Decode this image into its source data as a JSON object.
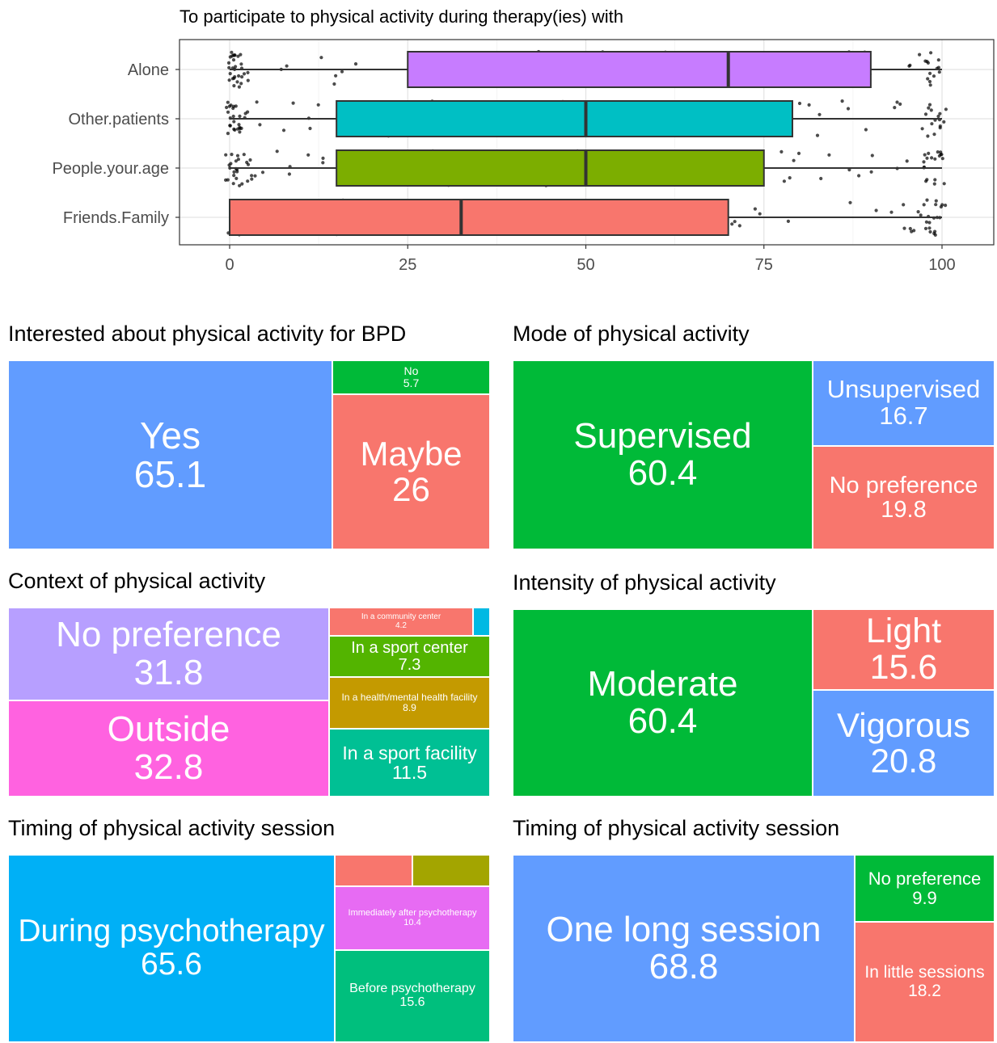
{
  "chart_data": [
    {
      "type": "boxplot",
      "title": "To participate to physical activity during therapy(ies) with",
      "xlabel": "",
      "ylabel": "",
      "xlim": [
        -2,
        106
      ],
      "x_ticks": [
        0,
        25,
        50,
        75,
        100
      ],
      "grid": true,
      "categories": [
        "Alone",
        "Other.patients",
        "People.your.age",
        "Friends.Family"
      ],
      "series": [
        {
          "category": "Alone",
          "color": "#C77CFF",
          "min": 0,
          "q1": 25,
          "median": 70,
          "q3": 90,
          "max": 100
        },
        {
          "category": "Other.patients",
          "color": "#00BFC4",
          "min": 0,
          "q1": 15,
          "median": 50,
          "q3": 79,
          "max": 100
        },
        {
          "category": "People.your.age",
          "color": "#7CAE00",
          "min": 0,
          "q1": 15,
          "median": 50,
          "q3": 75,
          "max": 100
        },
        {
          "category": "Friends.Family",
          "color": "#F8766D",
          "min": 0,
          "q1": 0,
          "median": 32.5,
          "q3": 70,
          "max": 100
        }
      ]
    },
    {
      "type": "treemap",
      "title": "Interested about physical activity for BPD",
      "items": [
        {
          "label": "Yes",
          "value": "65.1",
          "color": "#619CFF"
        },
        {
          "label": "No",
          "value": "5.7",
          "color": "#00BA38"
        },
        {
          "label": "Maybe",
          "value": "26",
          "color": "#F8766D"
        }
      ]
    },
    {
      "type": "treemap",
      "title": "Mode of physical activity",
      "items": [
        {
          "label": "Supervised",
          "value": "60.4",
          "color": "#00BA38"
        },
        {
          "label": "Unsupervised",
          "value": "16.7",
          "color": "#619CFF"
        },
        {
          "label": "No preference",
          "value": "19.8",
          "color": "#F8766D"
        }
      ]
    },
    {
      "type": "treemap",
      "title": "Context of physical activity",
      "items": [
        {
          "label": "No preference",
          "value": "31.8",
          "color": "#B79FFF"
        },
        {
          "label": "Outside",
          "value": "32.8",
          "color": "#FF62E0"
        },
        {
          "label": "In a community center",
          "value": "4.2",
          "color": "#F8766D"
        },
        {
          "label": "",
          "value": "",
          "color": "#00B9E3"
        },
        {
          "label": "In a sport center",
          "value": "7.3",
          "color": "#53B400"
        },
        {
          "label": "In a health/mental health facility",
          "value": "8.9",
          "color": "#C49A00"
        },
        {
          "label": "In a sport facility",
          "value": "11.5",
          "color": "#00C094"
        }
      ]
    },
    {
      "type": "treemap",
      "title": "Intensity of physical activity",
      "items": [
        {
          "label": "Moderate",
          "value": "60.4",
          "color": "#00BA38"
        },
        {
          "label": "Light",
          "value": "15.6",
          "color": "#F8766D"
        },
        {
          "label": "Vigorous",
          "value": "20.8",
          "color": "#619CFF"
        }
      ]
    },
    {
      "type": "treemap",
      "title": "Timing of physical activity session",
      "items": [
        {
          "label": "During psychotherapy",
          "value": "65.6",
          "color": "#00B0F6"
        },
        {
          "label": "",
          "value": "",
          "color": "#F8766D"
        },
        {
          "label": "",
          "value": "",
          "color": "#A3A500"
        },
        {
          "label": "Immediately after psychotherapy",
          "value": "10.4",
          "color": "#E76BF3"
        },
        {
          "label": "Before psychotherapy",
          "value": "15.6",
          "color": "#00BF7D"
        }
      ]
    },
    {
      "type": "treemap",
      "title": "Timing of physical activity session",
      "items": [
        {
          "label": "One long session",
          "value": "68.8",
          "color": "#619CFF"
        },
        {
          "label": "No preference",
          "value": "9.9",
          "color": "#00BA38"
        },
        {
          "label": "In little sessions",
          "value": "18.2",
          "color": "#F8766D"
        }
      ]
    }
  ]
}
